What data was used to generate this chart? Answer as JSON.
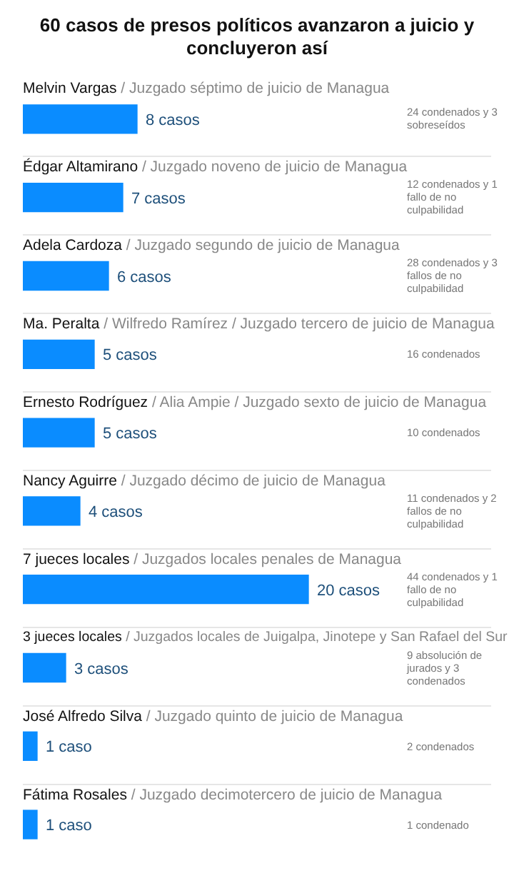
{
  "chart_data": {
    "type": "bar",
    "orientation": "horizontal",
    "title": "60 casos de presos políticos avanzaron a juicio y concluyeron así",
    "categories": [
      "Melvin Vargas / Juzgado séptimo de juicio de Managua",
      "Édgar Altamirano / Juzgado noveno de juicio de Managua",
      "Adela Cardoza / Juzgado segundo de juicio de Managua",
      "Ma. Peralta / Wilfredo Ramírez / Juzgado tercero de juicio de Managua",
      "Ernesto Rodríguez / Alia Ampie / Juzgado sexto de juicio de Managua",
      "Nancy Aguirre / Juzgado décimo de juicio de Managua",
      "7 jueces locales / Juzgados locales penales de Managua",
      "3 jueces locales / Juzgados locales de Juigalpa, Jinotepe y San Rafael del Sur",
      "José Alfredo Silva / Juzgado quinto de juicio de Managua",
      "Fátima Rosales / Juzgado decimotercero de juicio de Managua"
    ],
    "values": [
      8,
      7,
      6,
      5,
      5,
      4,
      20,
      3,
      1,
      1
    ],
    "value_labels": [
      "8 casos",
      "7 casos",
      "6 casos",
      "5 casos",
      "5 casos",
      "4 casos",
      "20 casos",
      "3 casos",
      "1 caso",
      "1 caso"
    ],
    "color": "#0a8cff",
    "annotations": [
      "24 condenados y 3 sobreseídos",
      "12 condenados y 1 fallo de no culpabilidad",
      "28 condenados y 3 fallos de no culpabilidad",
      "16 condenados",
      "10 condenados",
      "11 condenados y 2 fallos de no culpabilidad",
      "44 condenados y 1 fallo de no culpabilidad",
      "9 absolución de jurados y 3 condenados",
      "2 condenados",
      "1 condenado"
    ],
    "legend": false
  }
}
